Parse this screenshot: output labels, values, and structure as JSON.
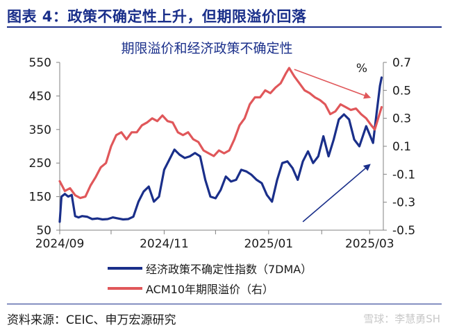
{
  "header": {
    "title": "图表 4：政策不确定性上升，但期限溢价回落"
  },
  "footer": {
    "source": "资料来源：CEIC、申万宏源研究",
    "watermark": "雪球：李慧勇SH"
  },
  "chart_data": {
    "type": "line",
    "title": "期限溢价和经济政策不确定性",
    "y_left": {
      "lim": [
        50,
        550
      ],
      "ticks": [
        "550",
        "450",
        "350",
        "250",
        "150",
        "50"
      ]
    },
    "y_right": {
      "lim": [
        -0.5,
        0.7
      ],
      "unit": "%",
      "ticks": [
        "0.7",
        "0.5",
        "0.3",
        "0.1",
        "-0.1",
        "-0.3",
        "-0.5"
      ]
    },
    "x_ticks": [
      "2024/09",
      "2024/11",
      "2025/01",
      "2025/03"
    ],
    "legend": {
      "placement": "bottom-center"
    },
    "series": [
      {
        "name": "经济政策不确定性指数（7DMA）",
        "axis": "left",
        "color": "#1a2f8a",
        "points": [
          [
            "2024-09-01",
            75
          ],
          [
            "2024-09-02",
            150
          ],
          [
            "2024-09-04",
            158
          ],
          [
            "2024-09-06",
            150
          ],
          [
            "2024-09-08",
            155
          ],
          [
            "2024-09-10",
            92
          ],
          [
            "2024-09-12",
            88
          ],
          [
            "2024-09-14",
            92
          ],
          [
            "2024-09-17",
            90
          ],
          [
            "2024-09-20",
            83
          ],
          [
            "2024-09-23",
            85
          ],
          [
            "2024-09-26",
            82
          ],
          [
            "2024-09-29",
            83
          ],
          [
            "2024-10-02",
            88
          ],
          [
            "2024-10-05",
            85
          ],
          [
            "2024-10-08",
            82
          ],
          [
            "2024-10-11",
            83
          ],
          [
            "2024-10-14",
            90
          ],
          [
            "2024-10-17",
            135
          ],
          [
            "2024-10-20",
            165
          ],
          [
            "2024-10-23",
            180
          ],
          [
            "2024-10-26",
            135
          ],
          [
            "2024-10-29",
            150
          ],
          [
            "2024-11-01",
            230
          ],
          [
            "2024-11-04",
            260
          ],
          [
            "2024-11-07",
            290
          ],
          [
            "2024-11-10",
            275
          ],
          [
            "2024-11-13",
            265
          ],
          [
            "2024-11-16",
            270
          ],
          [
            "2024-11-19",
            280
          ],
          [
            "2024-11-22",
            270
          ],
          [
            "2024-11-25",
            200
          ],
          [
            "2024-11-28",
            150
          ],
          [
            "2024-12-01",
            145
          ],
          [
            "2024-12-04",
            170
          ],
          [
            "2024-12-07",
            210
          ],
          [
            "2024-12-10",
            195
          ],
          [
            "2024-12-13",
            200
          ],
          [
            "2024-12-16",
            230
          ],
          [
            "2024-12-19",
            225
          ],
          [
            "2024-12-22",
            215
          ],
          [
            "2024-12-25",
            200
          ],
          [
            "2024-12-28",
            190
          ],
          [
            "2024-12-31",
            155
          ],
          [
            "2025-01-03",
            135
          ],
          [
            "2025-01-06",
            200
          ],
          [
            "2025-01-09",
            250
          ],
          [
            "2025-01-12",
            255
          ],
          [
            "2025-01-15",
            235
          ],
          [
            "2025-01-18",
            200
          ],
          [
            "2025-01-21",
            255
          ],
          [
            "2025-01-24",
            285
          ],
          [
            "2025-01-27",
            250
          ],
          [
            "2025-01-30",
            270
          ],
          [
            "2025-02-02",
            330
          ],
          [
            "2025-02-05",
            270
          ],
          [
            "2025-02-08",
            320
          ],
          [
            "2025-02-11",
            380
          ],
          [
            "2025-02-14",
            395
          ],
          [
            "2025-02-17",
            380
          ],
          [
            "2025-02-20",
            320
          ],
          [
            "2025-02-23",
            300
          ],
          [
            "2025-02-25",
            330
          ],
          [
            "2025-02-27",
            360
          ],
          [
            "2025-03-01",
            335
          ],
          [
            "2025-03-03",
            310
          ],
          [
            "2025-03-05",
            395
          ],
          [
            "2025-03-07",
            480
          ],
          [
            "2025-03-08",
            505
          ]
        ]
      },
      {
        "name": "ACM10年期限溢价（右）",
        "axis": "right",
        "color": "#e0575a",
        "points": [
          [
            "2024-09-01",
            -0.15
          ],
          [
            "2024-09-04",
            -0.22
          ],
          [
            "2024-09-07",
            -0.2
          ],
          [
            "2024-09-10",
            -0.25
          ],
          [
            "2024-09-13",
            -0.27
          ],
          [
            "2024-09-16",
            -0.26
          ],
          [
            "2024-09-19",
            -0.18
          ],
          [
            "2024-09-22",
            -0.12
          ],
          [
            "2024-09-25",
            -0.05
          ],
          [
            "2024-09-28",
            -0.02
          ],
          [
            "2024-10-01",
            0.1
          ],
          [
            "2024-10-04",
            0.18
          ],
          [
            "2024-10-07",
            0.2
          ],
          [
            "2024-10-10",
            0.15
          ],
          [
            "2024-10-13",
            0.2
          ],
          [
            "2024-10-16",
            0.2
          ],
          [
            "2024-10-19",
            0.25
          ],
          [
            "2024-10-22",
            0.27
          ],
          [
            "2024-10-25",
            0.3
          ],
          [
            "2024-10-28",
            0.28
          ],
          [
            "2024-10-31",
            0.32
          ],
          [
            "2024-11-03",
            0.28
          ],
          [
            "2024-11-06",
            0.27
          ],
          [
            "2024-11-09",
            0.2
          ],
          [
            "2024-11-12",
            0.18
          ],
          [
            "2024-11-15",
            0.2
          ],
          [
            "2024-11-18",
            0.15
          ],
          [
            "2024-11-21",
            0.13
          ],
          [
            "2024-11-24",
            0.07
          ],
          [
            "2024-11-27",
            0.05
          ],
          [
            "2024-11-30",
            0.03
          ],
          [
            "2024-12-03",
            0.07
          ],
          [
            "2024-12-06",
            0.05
          ],
          [
            "2024-12-09",
            0.07
          ],
          [
            "2024-12-12",
            0.15
          ],
          [
            "2024-12-15",
            0.25
          ],
          [
            "2024-12-18",
            0.3
          ],
          [
            "2024-12-21",
            0.4
          ],
          [
            "2024-12-24",
            0.45
          ],
          [
            "2024-12-27",
            0.45
          ],
          [
            "2024-12-30",
            0.5
          ],
          [
            "2025-01-02",
            0.48
          ],
          [
            "2025-01-05",
            0.52
          ],
          [
            "2025-01-08",
            0.55
          ],
          [
            "2025-01-11",
            0.62
          ],
          [
            "2025-01-13",
            0.66
          ],
          [
            "2025-01-16",
            0.6
          ],
          [
            "2025-01-19",
            0.55
          ],
          [
            "2025-01-22",
            0.5
          ],
          [
            "2025-01-25",
            0.48
          ],
          [
            "2025-01-28",
            0.45
          ],
          [
            "2025-01-31",
            0.43
          ],
          [
            "2025-02-03",
            0.4
          ],
          [
            "2025-02-06",
            0.33
          ],
          [
            "2025-02-09",
            0.35
          ],
          [
            "2025-02-12",
            0.4
          ],
          [
            "2025-02-15",
            0.38
          ],
          [
            "2025-02-18",
            0.36
          ],
          [
            "2025-02-21",
            0.37
          ],
          [
            "2025-02-24",
            0.33
          ],
          [
            "2025-02-27",
            0.3
          ],
          [
            "2025-03-02",
            0.25
          ],
          [
            "2025-03-04",
            0.22
          ],
          [
            "2025-03-06",
            0.3
          ],
          [
            "2025-03-08",
            0.38
          ]
        ]
      }
    ],
    "arrows": [
      {
        "color": "#e0575a",
        "from": [
          "2025-01-16",
          0.65
        ],
        "to": [
          "2025-03-01",
          0.45
        ]
      },
      {
        "color": "#1a2f8a",
        "from": [
          "2025-01-21",
          75
        ],
        "to": [
          "2025-03-01",
          245
        ]
      }
    ]
  }
}
